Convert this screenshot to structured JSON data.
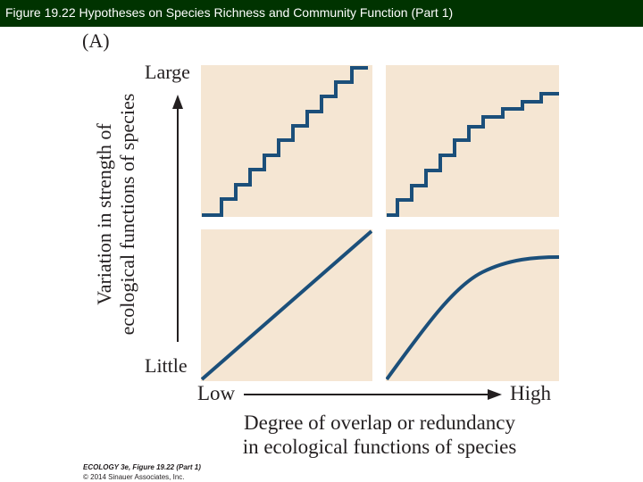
{
  "header": {
    "title": "Figure 19.22 Hypotheses on Species Richness and Community Function (Part 1)"
  },
  "figure": {
    "panel_label": "(A)",
    "y_axis": {
      "label_line1": "Variation in strength of",
      "label_line2": "ecological functions of species",
      "top_tick": "Large",
      "bottom_tick": "Little"
    },
    "x_axis": {
      "label_line1": "Degree of overlap or redundancy",
      "label_line2": "in ecological functions of species",
      "left_tick": "Low",
      "right_tick": "High"
    },
    "panel_color": "#f5e6d3",
    "curve_color": "#1b4f7a",
    "axis_color": "#231f20",
    "panels": [
      {
        "position": "top-left",
        "shape": "stepped linear"
      },
      {
        "position": "top-right",
        "shape": "stepped saturating"
      },
      {
        "position": "bottom-left",
        "shape": "linear"
      },
      {
        "position": "bottom-right",
        "shape": "saturating"
      }
    ]
  },
  "credit": {
    "line1": "ECOLOGY 3e, Figure 19.22 (Part 1)",
    "line2": "© 2014 Sinauer Associates, Inc."
  }
}
